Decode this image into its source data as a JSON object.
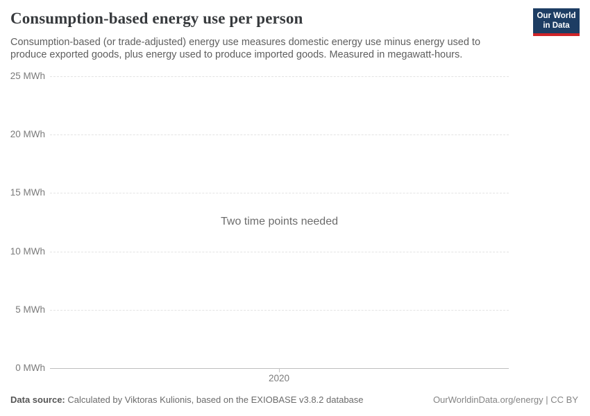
{
  "header": {
    "title": "Consumption-based energy use per person",
    "subtitle": "Consumption-based (or trade-adjusted) energy use measures domestic energy use minus energy used to produce exported goods, plus energy used to produce imported goods. Measured in megawatt-hours.",
    "logo": {
      "line1": "Our World",
      "line2": "in Data"
    }
  },
  "chart_data": {
    "type": "line",
    "title": "Consumption-based energy use per person",
    "unit": "MWh",
    "series": [],
    "empty_state_message": "Two time points needed",
    "x_ticks": [
      "2020"
    ],
    "y_ticks_top_to_bottom": [
      "25 MWh",
      "20 MWh",
      "15 MWh",
      "10 MWh",
      "5 MWh",
      "0 MWh"
    ],
    "ylim": [
      0,
      25
    ],
    "xlabel": "",
    "ylabel": "",
    "grid": "horizontal-dashed",
    "legend": "none"
  },
  "footer": {
    "data_source_label": "Data source:",
    "data_source_text": "Calculated by Viktoras Kulionis, based on the EXIOBASE v3.8.2 database",
    "attribution": "OurWorldinData.org/energy | CC BY"
  },
  "colors": {
    "logo_background": "#1d3d63",
    "logo_stripe": "#cf2428",
    "gridline": "#e3e3e3",
    "axis_line": "#bdbdbd",
    "tick_text": "#7a7a7a"
  }
}
